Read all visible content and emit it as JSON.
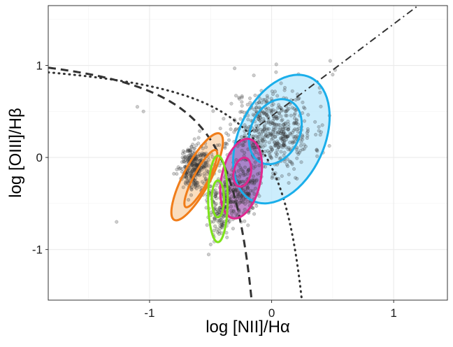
{
  "chart_data": {
    "type": "scatter",
    "title": "",
    "xlabel": "log [NII]/Hα",
    "ylabel": "log [OIII]/Hβ",
    "xlim": [
      -1.83,
      1.44
    ],
    "ylim": [
      -1.55,
      1.65
    ],
    "xticks": [
      -1,
      0,
      1
    ],
    "yticks": [
      -1,
      0,
      1
    ],
    "xtick_labels": [
      "-1",
      "0",
      "1"
    ],
    "ytick_labels": [
      "-1",
      "0",
      "1"
    ],
    "grid": true,
    "legend": "none",
    "point_color": "#333333",
    "point_opacity": 0.25,
    "point_clouds": [
      {
        "name": "",
        "center": [
          0.0,
          0.3
        ],
        "spread": [
          0.17,
          0.23
        ],
        "count": 520,
        "seed": 11
      },
      {
        "name": "",
        "center": [
          -0.64,
          -0.1
        ],
        "spread": [
          0.06,
          0.12
        ],
        "count": 300,
        "seed": 29
      },
      {
        "name": "",
        "center": [
          -0.42,
          -0.55
        ],
        "spread": [
          0.06,
          0.16
        ],
        "count": 160,
        "seed": 47
      },
      {
        "name": "",
        "center": [
          -0.25,
          -0.35
        ],
        "spread": [
          0.08,
          0.16
        ],
        "count": 200,
        "seed": 71
      }
    ],
    "outlier_points": [
      [
        -1.27,
        -0.7
      ],
      [
        0.5,
        0.9
      ],
      [
        0.52,
        0.95
      ],
      [
        -1.05,
        0.5
      ],
      [
        -1.1,
        0.55
      ],
      [
        0.48,
        1.05
      ]
    ],
    "contour_series": [
      {
        "color": "#1aaeea",
        "fill": "#bfe9fb",
        "fill_opacity": 0.8,
        "center": [
          0.08,
          0.2
        ],
        "axes": [
          0.35,
          0.74
        ],
        "angle_deg": 25,
        "stroke_width": 3
      },
      {
        "color": "#1aaeea",
        "fill": "none",
        "fill_opacity": 0,
        "center": [
          0.03,
          0.28
        ],
        "axes": [
          0.2,
          0.37
        ],
        "angle_deg": 25,
        "stroke_width": 3
      },
      {
        "color": "#f07d1a",
        "fill": "#f5b46f",
        "fill_opacity": 0.45,
        "center": [
          -0.61,
          -0.21
        ],
        "axes": [
          0.11,
          0.53
        ],
        "angle_deg": 28,
        "stroke_width": 3
      },
      {
        "color": "#f07d1a",
        "fill": "none",
        "fill_opacity": 0,
        "center": [
          -0.58,
          -0.23
        ],
        "axes": [
          0.06,
          0.35
        ],
        "angle_deg": 28,
        "stroke_width": 3
      },
      {
        "color": "#e0288f",
        "fill": "#8b2da0",
        "fill_opacity": 0.55,
        "center": [
          -0.25,
          -0.23
        ],
        "axes": [
          0.16,
          0.44
        ],
        "angle_deg": 12,
        "stroke_width": 3
      },
      {
        "color": "#e0288f",
        "fill": "none",
        "fill_opacity": 0,
        "center": [
          -0.24,
          -0.16
        ],
        "axes": [
          0.07,
          0.16
        ],
        "angle_deg": 12,
        "stroke_width": 3
      },
      {
        "color": "#7de31a",
        "fill": "#e8f0c8",
        "fill_opacity": 0.35,
        "center": [
          -0.44,
          -0.45
        ],
        "axes": [
          0.08,
          0.47
        ],
        "angle_deg": 0,
        "stroke_width": 3
      },
      {
        "color": "#7de31a",
        "fill": "none",
        "fill_opacity": 0,
        "center": [
          -0.44,
          -0.45
        ],
        "axes": [
          0.05,
          0.2
        ],
        "angle_deg": 0,
        "stroke_width": 3
      }
    ],
    "reference_curves": [
      {
        "name": "",
        "style": "dashed",
        "a": 0.61,
        "b": 0.05,
        "c": 1.3,
        "x_min": -1.83,
        "x_max": 0.0,
        "color": "#333333",
        "width": 3
      },
      {
        "name": "",
        "style": "dotted",
        "a": 0.61,
        "b": 0.47,
        "c": 1.19,
        "x_min": -1.83,
        "x_max": 0.4,
        "color": "#333333",
        "width": 3
      },
      {
        "name": "",
        "style": "dashdot",
        "slope": 1.0,
        "intercept": 0.45,
        "x_min": -0.3,
        "x_max": 1.44,
        "color": "#333333",
        "width": 2
      }
    ]
  }
}
